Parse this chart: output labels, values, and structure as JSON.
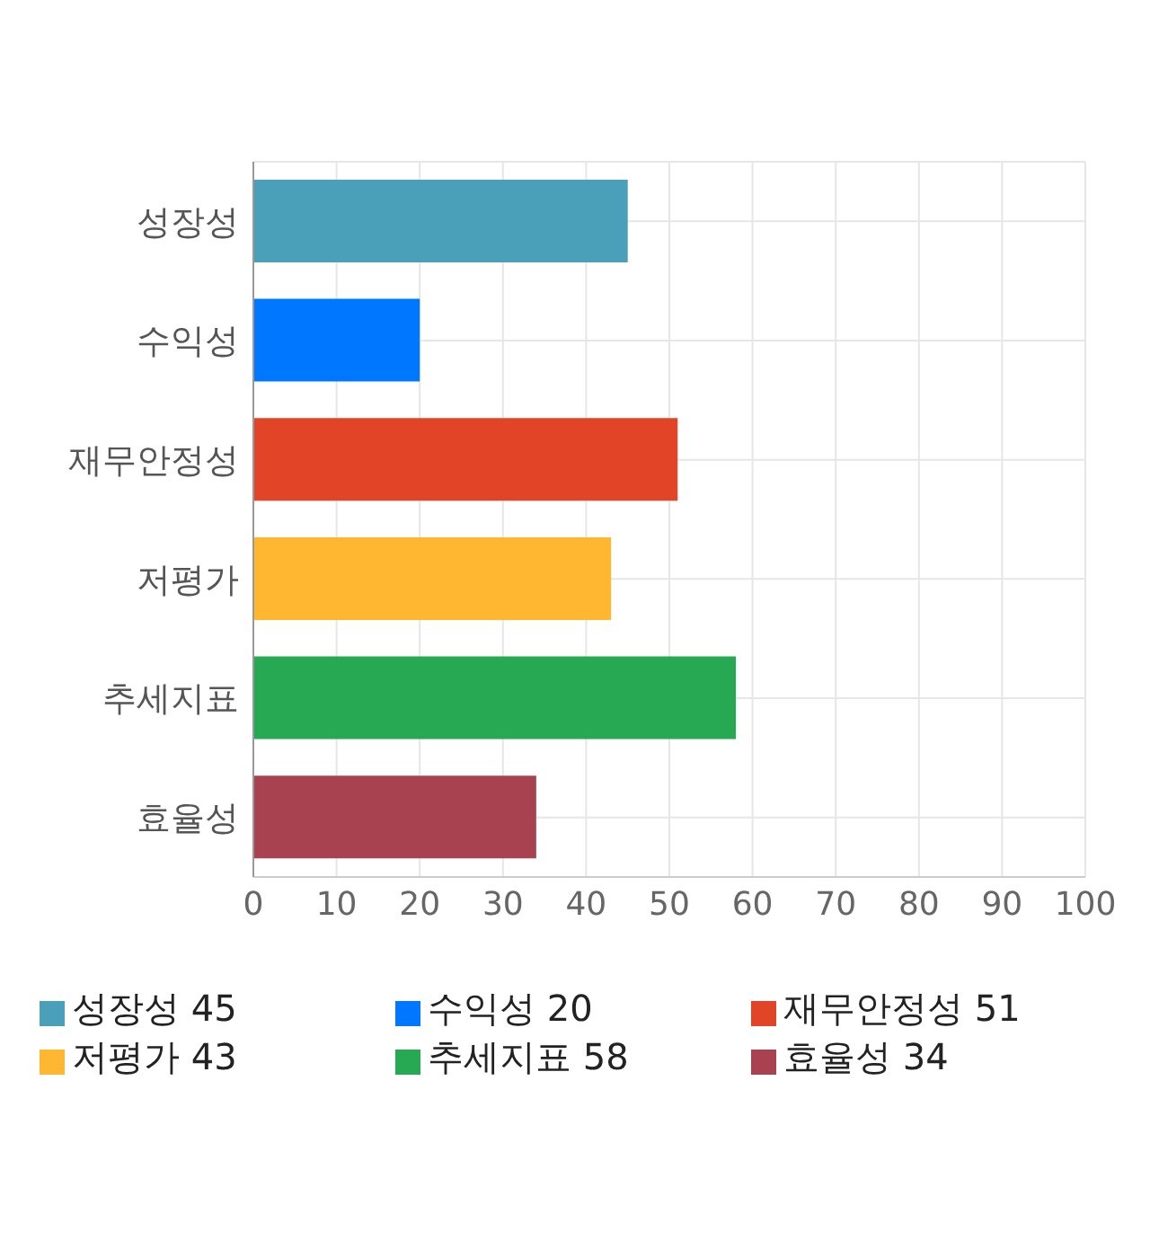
{
  "chart_data": {
    "type": "bar",
    "orientation": "horizontal",
    "stacked": true,
    "categories": [
      "성장성",
      "수익성",
      "재무안정성",
      "저평가",
      "추세지표",
      "효율성"
    ],
    "series": [
      {
        "name": "성장성 45",
        "color": "#4aa0b9",
        "values": [
          45,
          null,
          null,
          null,
          null,
          null
        ]
      },
      {
        "name": "수익성 20",
        "color": "#0077ff",
        "values": [
          null,
          20,
          null,
          null,
          null,
          null
        ]
      },
      {
        "name": "재무안정성 51",
        "color": "#e24427",
        "values": [
          null,
          null,
          51,
          null,
          null,
          null
        ]
      },
      {
        "name": "저평가 43",
        "color": "#ffb732",
        "values": [
          null,
          null,
          null,
          43,
          null,
          null
        ]
      },
      {
        "name": "추세지표 58",
        "color": "#27a853",
        "values": [
          null,
          null,
          null,
          null,
          58,
          null
        ]
      },
      {
        "name": "효율성 34",
        "color": "#a84250",
        "values": [
          null,
          null,
          null,
          null,
          null,
          34
        ]
      }
    ],
    "xlim": [
      0,
      100
    ],
    "xticks": [
      0,
      10,
      20,
      30,
      40,
      50,
      60,
      70,
      80,
      90,
      100
    ],
    "grid": true,
    "legend": "bottom"
  }
}
